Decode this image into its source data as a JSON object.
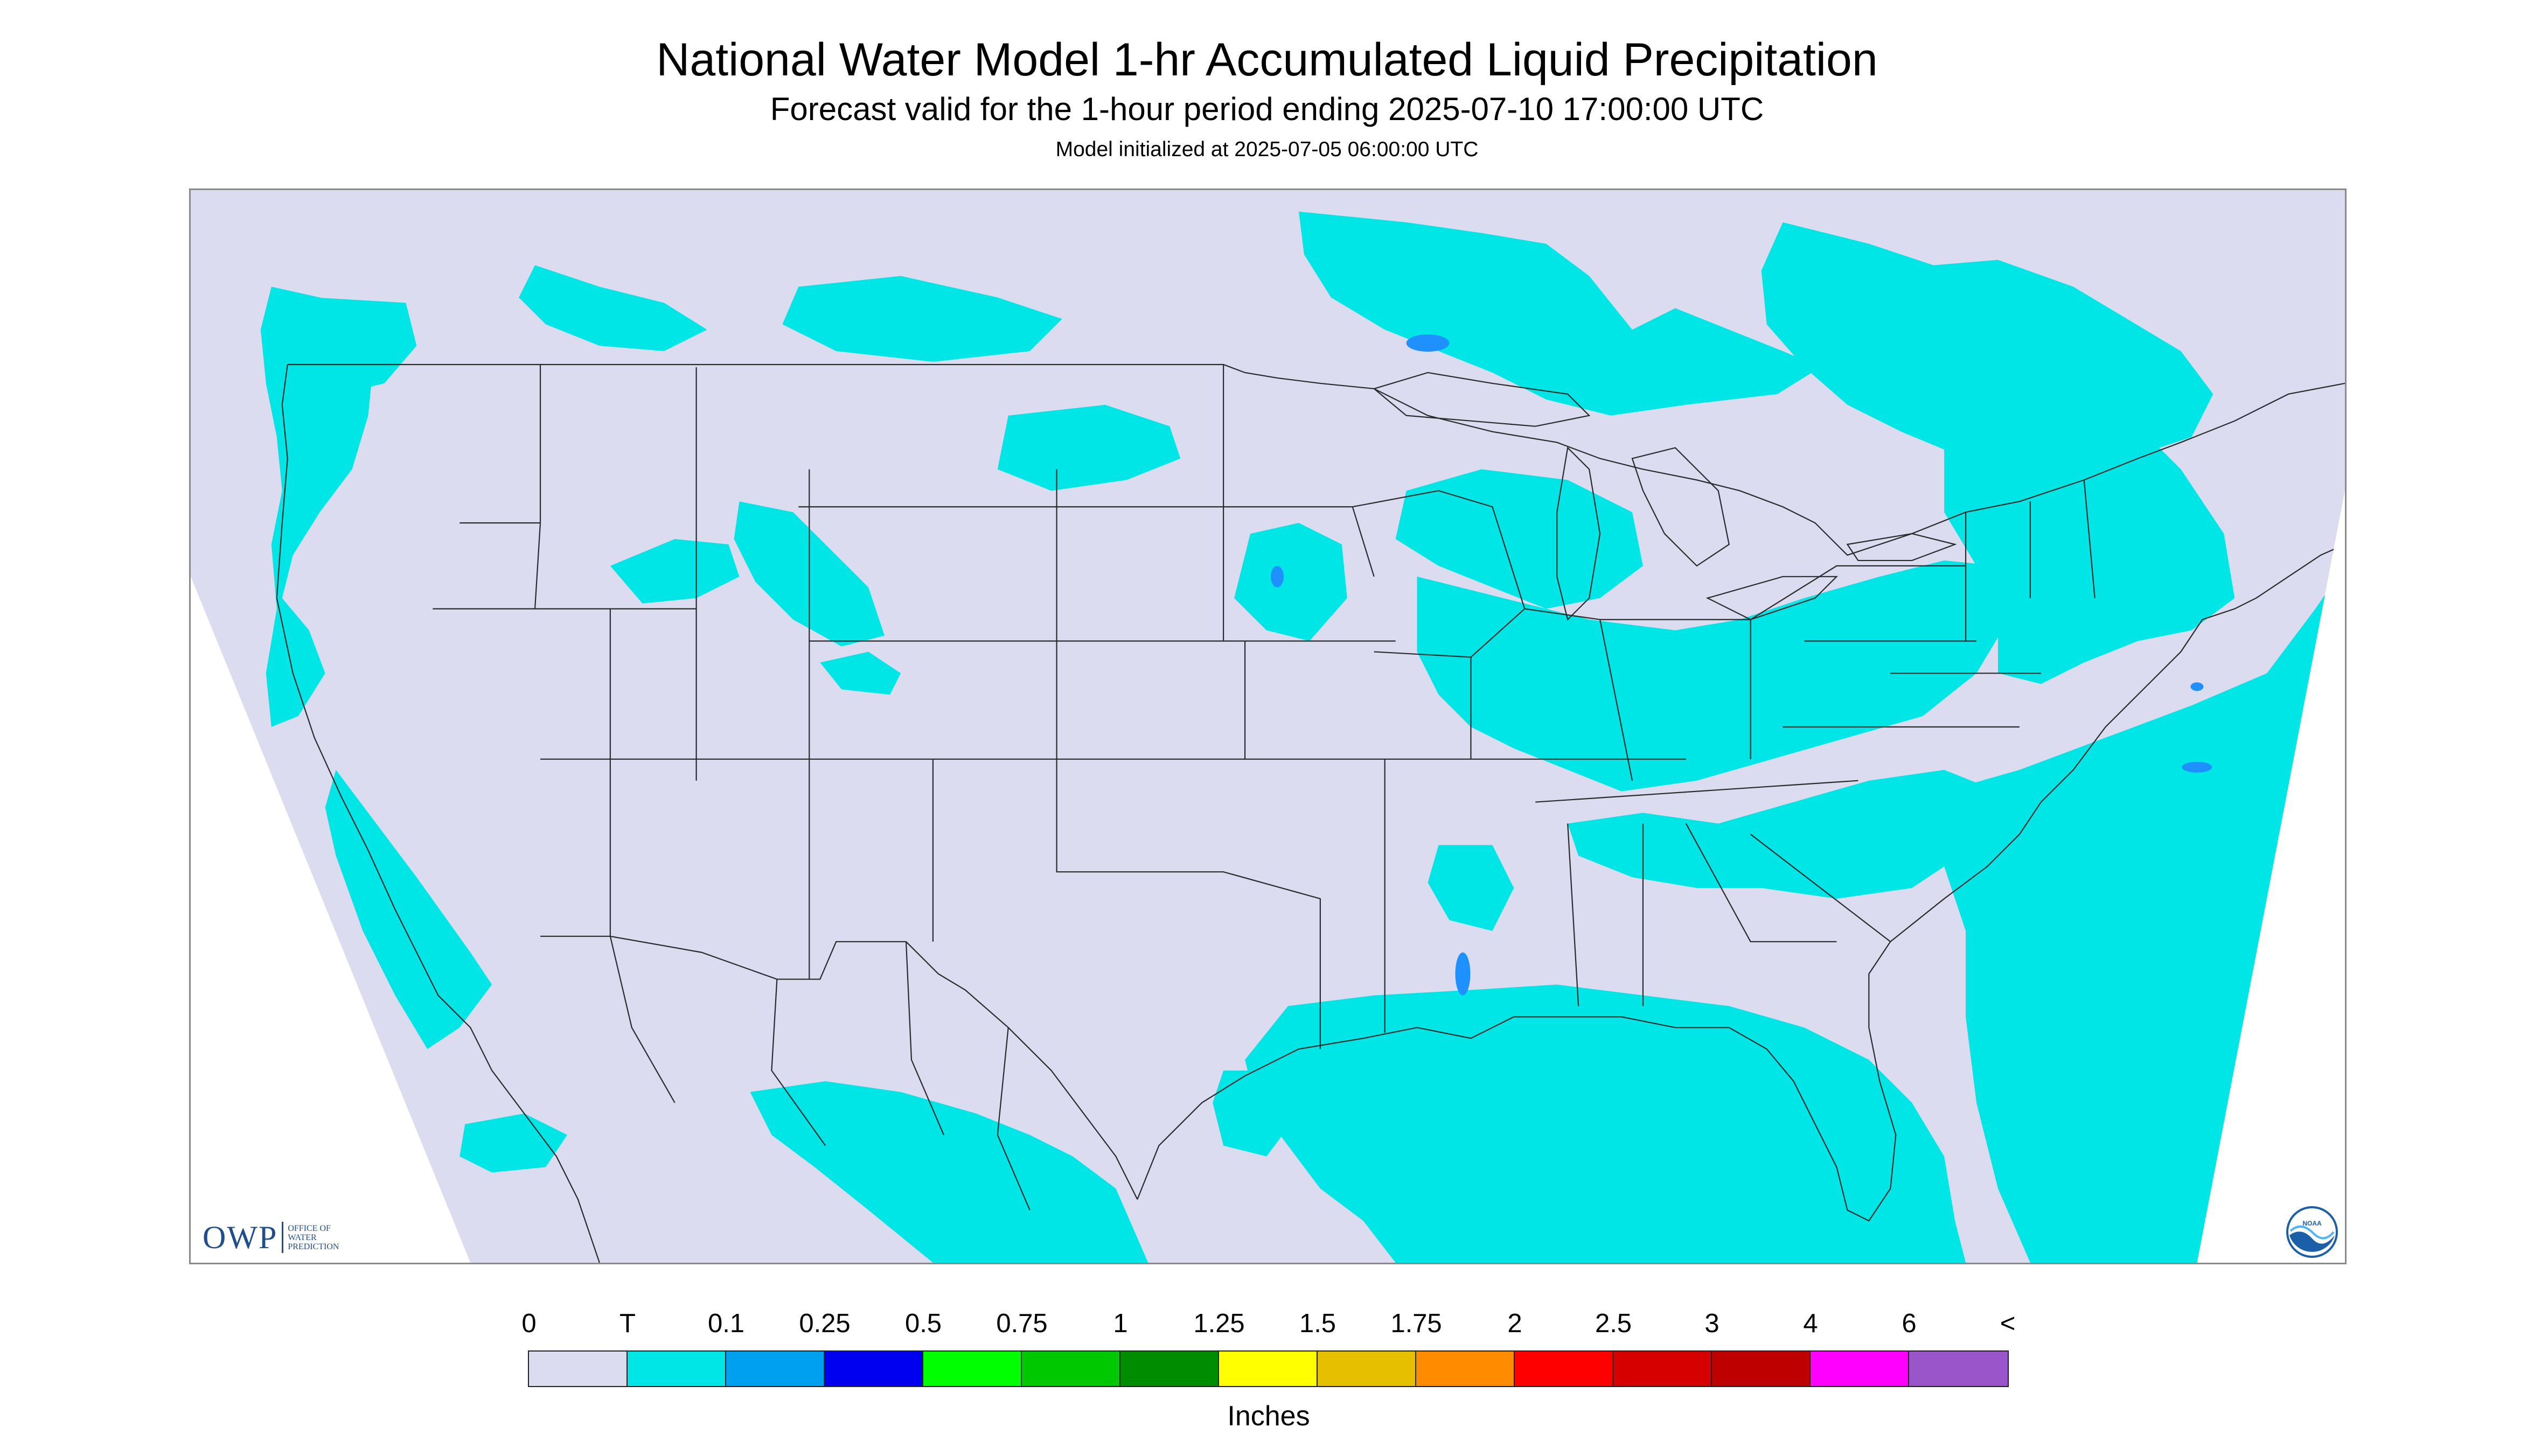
{
  "header": {
    "title": "National Water Model 1-hr Accumulated Liquid Precipitation",
    "subtitle": "Forecast valid for the 1-hour period ending 2025-07-10 17:00:00 UTC",
    "init_note": "Model initialized at 2025-07-05 06:00:00 UTC"
  },
  "map": {
    "region": "Continental United States",
    "background_color": "#dcdcf0",
    "outside_domain_color": "#ffffff",
    "boundary_color": "#333333",
    "dominant_precip_color": "#00e5e5",
    "higher_precip_color": "#1e90ff",
    "precip_areas": [
      {
        "area": "Pacific Northwest coast",
        "category": "T"
      },
      {
        "area": "Montana / Wyoming / Colorado mountains",
        "category": "T"
      },
      {
        "area": "Upper Midwest / Great Lakes",
        "category": "T"
      },
      {
        "area": "Ohio Valley / Mid-Atlantic / Northeast",
        "category": "T"
      },
      {
        "area": "Gulf Coast / Florida",
        "category": "T"
      },
      {
        "area": "Northern Mexico",
        "category": "T"
      },
      {
        "area": "Western Atlantic Ocean",
        "category": "T"
      },
      {
        "area": "Eastern Pacific Ocean",
        "category": "T"
      }
    ]
  },
  "logos": {
    "owp": {
      "letters": "OWP",
      "subtext": "OFFICE OF\nWATER\nPREDICTION"
    },
    "noaa": {
      "text": "NOAA"
    }
  },
  "legend": {
    "tick_labels": [
      "0",
      "T",
      "0.1",
      "0.25",
      "0.5",
      "0.75",
      "1",
      "1.25",
      "1.5",
      "1.75",
      "2",
      "2.5",
      "3",
      "4",
      "6",
      "<"
    ],
    "colors": [
      "#dcdcf0",
      "#00e5e5",
      "#00a0f0",
      "#0000f0",
      "#00ff00",
      "#00c800",
      "#008c00",
      "#ffff00",
      "#e6c000",
      "#ff8c00",
      "#ff0000",
      "#d70000",
      "#be0000",
      "#ff00ff",
      "#9955c9"
    ],
    "units": "Inches"
  }
}
